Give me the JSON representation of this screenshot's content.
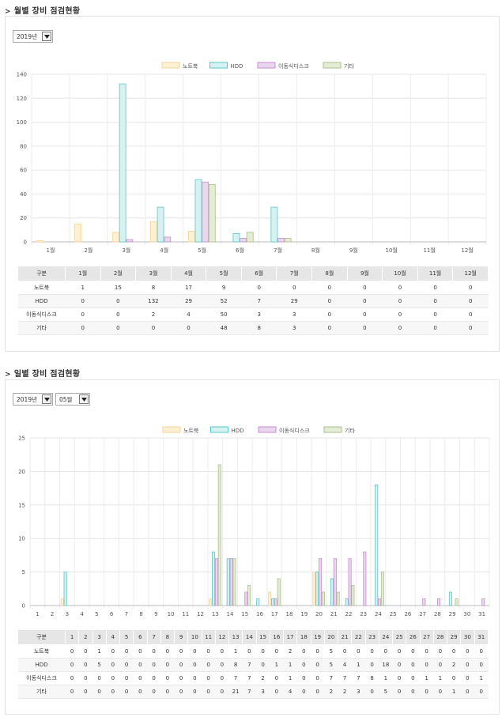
{
  "monthly": {
    "title": "월별 장비 점검현황",
    "year_select": "2019년",
    "legend": [
      "노트북",
      "HDD",
      "이동식디스크",
      "기타"
    ],
    "table_header_first": "구분",
    "chart_data": {
      "type": "bar",
      "categories": [
        "1월",
        "2월",
        "3월",
        "4월",
        "5월",
        "6월",
        "7월",
        "8월",
        "9월",
        "10월",
        "11월",
        "12월"
      ],
      "series": [
        {
          "name": "노트북",
          "values": [
            1,
            15,
            8,
            17,
            9,
            0,
            0,
            0,
            0,
            0,
            0,
            0
          ]
        },
        {
          "name": "HDD",
          "values": [
            0,
            0,
            132,
            29,
            52,
            7,
            29,
            0,
            0,
            0,
            0,
            0
          ]
        },
        {
          "name": "이동식디스크",
          "values": [
            0,
            0,
            2,
            4,
            50,
            3,
            3,
            0,
            0,
            0,
            0,
            0
          ]
        },
        {
          "name": "기타",
          "values": [
            0,
            0,
            0,
            0,
            48,
            8,
            3,
            0,
            0,
            0,
            0,
            0
          ]
        }
      ],
      "ylim": [
        0,
        140
      ],
      "yticks": [
        0,
        20,
        40,
        60,
        80,
        100,
        120,
        140
      ],
      "grid": true,
      "legend_position": "top"
    }
  },
  "daily": {
    "title": "일별 장비 점검현황",
    "year_select": "2019년",
    "month_select": "05월",
    "legend": [
      "노트북",
      "HDD",
      "이동식디스크",
      "기타"
    ],
    "table_header_first": "구분",
    "chart_data": {
      "type": "bar",
      "categories": [
        "1",
        "2",
        "3",
        "4",
        "5",
        "6",
        "7",
        "8",
        "9",
        "10",
        "11",
        "12",
        "13",
        "14",
        "15",
        "16",
        "17",
        "18",
        "19",
        "20",
        "21",
        "22",
        "23",
        "24",
        "25",
        "26",
        "27",
        "28",
        "29",
        "30",
        "31"
      ],
      "series": [
        {
          "name": "노트북",
          "values": [
            0,
            0,
            1,
            0,
            0,
            0,
            0,
            0,
            0,
            0,
            0,
            0,
            1,
            0,
            0,
            0,
            2,
            0,
            0,
            5,
            0,
            0,
            0,
            0,
            0,
            0,
            0,
            0,
            0,
            0,
            0
          ]
        },
        {
          "name": "HDD",
          "values": [
            0,
            0,
            5,
            0,
            0,
            0,
            0,
            0,
            0,
            0,
            0,
            0,
            8,
            7,
            0,
            1,
            1,
            0,
            0,
            5,
            4,
            1,
            0,
            18,
            0,
            0,
            0,
            0,
            2,
            0,
            0
          ]
        },
        {
          "name": "이동식디스크",
          "values": [
            0,
            0,
            0,
            0,
            0,
            0,
            0,
            0,
            0,
            0,
            0,
            0,
            7,
            7,
            2,
            0,
            1,
            0,
            0,
            7,
            7,
            7,
            8,
            1,
            0,
            0,
            1,
            1,
            0,
            0,
            1
          ]
        },
        {
          "name": "기타",
          "values": [
            0,
            0,
            0,
            0,
            0,
            0,
            0,
            0,
            0,
            0,
            0,
            0,
            21,
            7,
            3,
            0,
            4,
            0,
            0,
            2,
            2,
            3,
            0,
            5,
            0,
            0,
            0,
            0,
            1,
            0,
            0
          ]
        }
      ],
      "ylim": [
        0,
        25
      ],
      "yticks": [
        0,
        5,
        10,
        15,
        20,
        25
      ],
      "grid": true,
      "legend_position": "top"
    }
  },
  "colors": {
    "fill": [
      "#fdf0d5",
      "#d6f1f1",
      "#ead6ee",
      "#e4ecd6"
    ],
    "stroke": [
      "#f3d49a",
      "#5bc6c8",
      "#c78ed0",
      "#aac08a"
    ]
  }
}
